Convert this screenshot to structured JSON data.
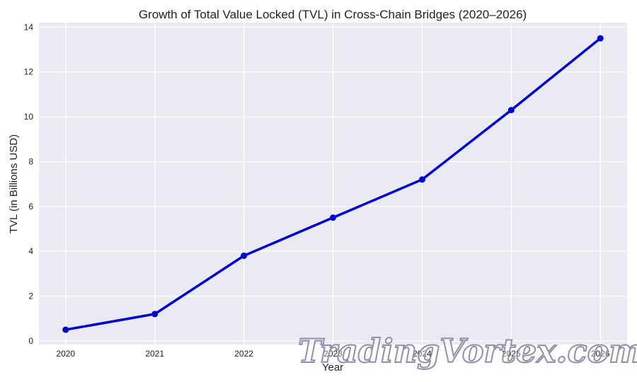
{
  "chart_data": {
    "type": "line",
    "title": "Growth of Total Value Locked (TVL) in Cross-Chain Bridges (2020–2026)",
    "xlabel": "Year",
    "ylabel": "TVL (in Billions USD)",
    "categories": [
      "2020",
      "2021",
      "2022",
      "2023",
      "2024",
      "2025",
      "2026"
    ],
    "x": [
      2020,
      2021,
      2022,
      2023,
      2024,
      2025,
      2026
    ],
    "series": [
      {
        "values": [
          0.5,
          1.2,
          3.8,
          5.5,
          7.2,
          10.3,
          13.5
        ],
        "color": "#0000cc",
        "marker": "circle"
      }
    ],
    "ylim": [
      -0.16,
      14.2
    ],
    "xlim": [
      2019.7,
      2026.3
    ],
    "yticks": [
      0,
      2,
      4,
      6,
      8,
      10,
      12,
      14
    ],
    "grid": true,
    "background": "#eaeaf2"
  },
  "watermark": "TradingVortex.com"
}
